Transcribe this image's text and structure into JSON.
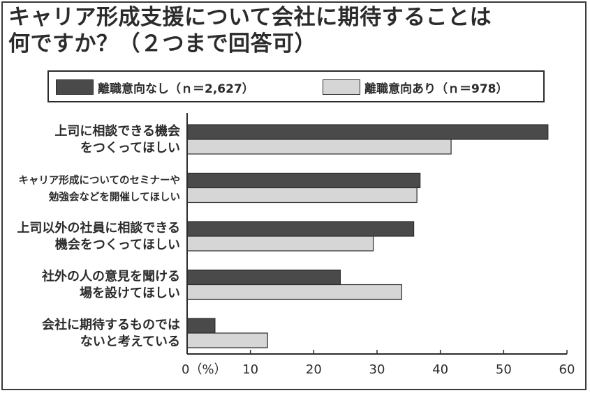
{
  "title_lines": [
    "キャリア形成支援について会社に期待することは",
    "何ですか？（２つまで回答可）"
  ],
  "colors": {
    "series_dark": "#4a4a4a",
    "series_light": "#d6d6d6",
    "outline": "#2b2b2b"
  },
  "chart_data": {
    "type": "bar",
    "orientation": "horizontal",
    "categories": [
      [
        "上司に相談できる機会",
        "をつくってほしい"
      ],
      [
        "キャリア形成についてのセミナーや",
        "勉強会などを開催してほしい"
      ],
      [
        "上司以外の社員に相談できる",
        "機会をつくってほしい"
      ],
      [
        "社外の人の意見を聞ける",
        "場を設けてほしい"
      ],
      [
        "会社に期待するものでは",
        "ないと考えている"
      ]
    ],
    "series": [
      {
        "name": "離職意向なし（ｎ＝2,627）",
        "values": [
          57.0,
          36.8,
          35.8,
          24.2,
          4.4
        ]
      },
      {
        "name": "離職意向あり（ｎ＝978）",
        "values": [
          41.7,
          36.3,
          29.4,
          33.9,
          12.7
        ]
      }
    ],
    "xlim": [
      0,
      60
    ],
    "xticks": [
      "0（%）",
      "10",
      "20",
      "30",
      "40",
      "50",
      "60"
    ],
    "xtick_values": [
      0,
      10,
      20,
      30,
      40,
      50,
      60
    ],
    "legend_position": "top",
    "grid": false
  }
}
